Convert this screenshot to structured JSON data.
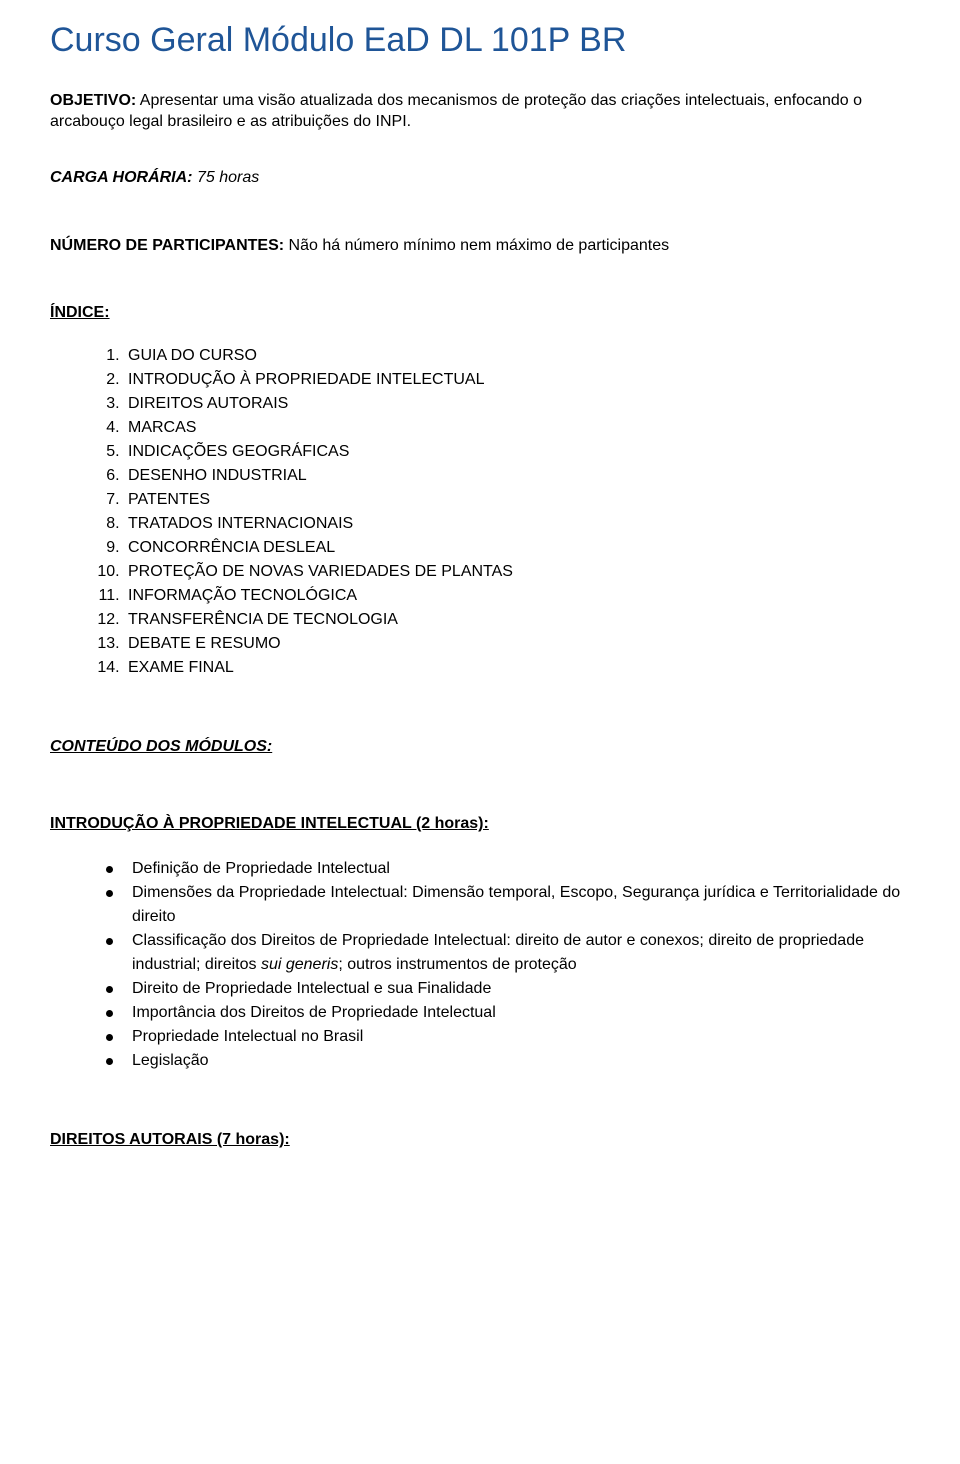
{
  "title": "Curso Geral Módulo EaD DL 101P BR",
  "objetivo": {
    "label": "OBJETIVO:",
    "text": " Apresentar uma visão atualizada dos mecanismos de proteção das criações intelectuais, enfocando o arcabouço legal brasileiro e as atribuições do INPI."
  },
  "carga": {
    "label": "CARGA HORÁRIA:",
    "value": " 75 horas"
  },
  "participantes": {
    "label": "NÚMERO DE PARTICIPANTES:",
    "value": " Não há número mínimo nem máximo de participantes"
  },
  "indice_label": "ÍNDICE:",
  "indice": [
    "GUIA DO CURSO",
    "INTRODUÇÃO À PROPRIEDADE INTELECTUAL",
    "DIREITOS AUTORAIS",
    "MARCAS",
    "INDICAÇÕES GEOGRÁFICAS",
    "DESENHO INDUSTRIAL",
    "PATENTES",
    "TRATADOS INTERNACIONAIS",
    "CONCORRÊNCIA DESLEAL",
    "PROTEÇÃO DE NOVAS VARIEDADES DE PLANTAS",
    "INFORMAÇÃO TECNOLÓGICA",
    "TRANSFERÊNCIA DE TECNOLOGIA",
    "DEBATE E RESUMO",
    "EXAME FINAL"
  ],
  "conteudo_label": "CONTEÚDO DOS MÓDULOS:",
  "mod1": {
    "heading": "INTRODUÇÃO À PROPRIEDADE INTELECTUAL (2 horas):",
    "b0": "Definição de Propriedade Intelectual",
    "b1": "Dimensões da Propriedade Intelectual: Dimensão temporal, Escopo, Segurança jurídica e Territorialidade do direito",
    "b2a": "Classificação dos Direitos de Propriedade Intelectual: direito de autor e conexos; direito de propriedade industrial; direitos ",
    "b2_sui": "sui generis",
    "b2b": "; outros instrumentos de proteção",
    "b3": "Direito de Propriedade Intelectual e sua Finalidade",
    "b4": "Importância dos Direitos de Propriedade Intelectual",
    "b5": "Propriedade Intelectual no Brasil",
    "b6": "Legislação"
  },
  "mod2": {
    "heading": "DIREITOS AUTORAIS (7 horas):"
  }
}
